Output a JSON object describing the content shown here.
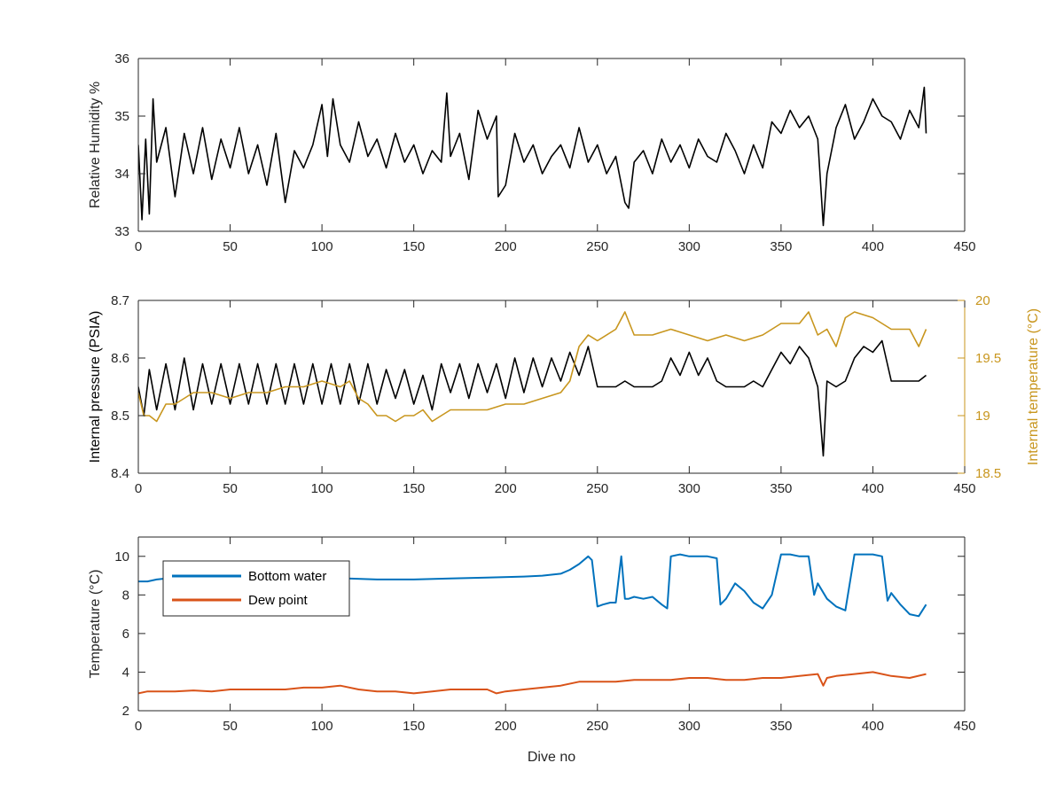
{
  "figure": {
    "background": "#ffffff"
  },
  "chart_data": [
    {
      "type": "line",
      "xlabel": "",
      "ylabel": "Relative Humidity %",
      "xlim": [
        0,
        450
      ],
      "ylim": [
        33,
        36
      ],
      "xticks": [
        0,
        50,
        100,
        150,
        200,
        250,
        300,
        350,
        400,
        450
      ],
      "yticks": [
        33,
        34,
        35,
        36
      ],
      "grid": false,
      "series": [
        {
          "color": "#000000",
          "x": [
            0,
            2,
            4,
            6,
            8,
            10,
            15,
            20,
            25,
            30,
            35,
            40,
            45,
            50,
            55,
            60,
            65,
            70,
            75,
            80,
            85,
            90,
            95,
            100,
            103,
            106,
            110,
            115,
            120,
            125,
            130,
            135,
            140,
            145,
            150,
            155,
            160,
            165,
            168,
            170,
            175,
            180,
            185,
            190,
            195,
            196,
            200,
            205,
            210,
            215,
            220,
            225,
            230,
            235,
            240,
            245,
            250,
            255,
            260,
            265,
            267,
            270,
            275,
            280,
            285,
            290,
            295,
            300,
            305,
            310,
            315,
            320,
            325,
            330,
            335,
            340,
            345,
            350,
            355,
            360,
            365,
            370,
            373,
            375,
            380,
            385,
            390,
            395,
            400,
            405,
            410,
            415,
            420,
            425,
            428,
            429
          ],
          "values": [
            34.5,
            33.2,
            34.6,
            33.3,
            35.3,
            34.2,
            34.8,
            33.6,
            34.7,
            34.0,
            34.8,
            33.9,
            34.6,
            34.1,
            34.8,
            34.0,
            34.5,
            33.8,
            34.7,
            33.5,
            34.4,
            34.1,
            34.5,
            35.2,
            34.3,
            35.3,
            34.5,
            34.2,
            34.9,
            34.3,
            34.6,
            34.1,
            34.7,
            34.2,
            34.5,
            34.0,
            34.4,
            34.2,
            35.4,
            34.3,
            34.7,
            33.9,
            35.1,
            34.6,
            35.0,
            33.6,
            33.8,
            34.7,
            34.2,
            34.5,
            34.0,
            34.3,
            34.5,
            34.1,
            34.8,
            34.2,
            34.5,
            34.0,
            34.3,
            33.5,
            33.4,
            34.2,
            34.4,
            34.0,
            34.6,
            34.2,
            34.5,
            34.1,
            34.6,
            34.3,
            34.2,
            34.7,
            34.4,
            34.0,
            34.5,
            34.1,
            34.9,
            34.7,
            35.1,
            34.8,
            35.0,
            34.6,
            33.1,
            34.0,
            34.8,
            35.2,
            34.6,
            34.9,
            35.3,
            35.0,
            34.9,
            34.6,
            35.1,
            34.8,
            35.5,
            34.7
          ]
        }
      ]
    },
    {
      "type": "line",
      "xlabel": "",
      "ylabel": "Internal pressure (PSIA)",
      "ylabel_right": "Internal temperature (°C)",
      "xlim": [
        0,
        450
      ],
      "ylim": [
        8.4,
        8.7
      ],
      "ylim_right": [
        18.5,
        20
      ],
      "xticks": [
        0,
        50,
        100,
        150,
        200,
        250,
        300,
        350,
        400,
        450
      ],
      "yticks": [
        8.4,
        8.5,
        8.6,
        8.7
      ],
      "yticks_right": [
        18.5,
        19,
        19.5,
        20
      ],
      "grid": false,
      "series": [
        {
          "axis": "left",
          "color": "#000000",
          "x": [
            0,
            3,
            6,
            10,
            15,
            20,
            25,
            30,
            35,
            40,
            45,
            50,
            55,
            60,
            65,
            70,
            75,
            80,
            85,
            90,
            95,
            100,
            105,
            110,
            115,
            120,
            125,
            130,
            135,
            140,
            145,
            150,
            155,
            160,
            165,
            170,
            175,
            180,
            185,
            190,
            195,
            200,
            205,
            210,
            215,
            220,
            225,
            230,
            235,
            240,
            245,
            250,
            255,
            260,
            265,
            270,
            275,
            280,
            285,
            290,
            295,
            300,
            305,
            310,
            315,
            320,
            325,
            330,
            335,
            340,
            345,
            350,
            355,
            360,
            365,
            370,
            373,
            375,
            380,
            385,
            390,
            395,
            400,
            405,
            410,
            415,
            420,
            425,
            429
          ],
          "values": [
            8.55,
            8.5,
            8.58,
            8.51,
            8.59,
            8.51,
            8.6,
            8.51,
            8.59,
            8.52,
            8.59,
            8.52,
            8.59,
            8.52,
            8.59,
            8.52,
            8.59,
            8.52,
            8.59,
            8.52,
            8.59,
            8.52,
            8.59,
            8.52,
            8.59,
            8.52,
            8.59,
            8.52,
            8.58,
            8.53,
            8.58,
            8.52,
            8.57,
            8.51,
            8.59,
            8.54,
            8.59,
            8.53,
            8.59,
            8.54,
            8.59,
            8.53,
            8.6,
            8.54,
            8.6,
            8.55,
            8.6,
            8.56,
            8.61,
            8.57,
            8.62,
            8.55,
            8.55,
            8.55,
            8.56,
            8.55,
            8.55,
            8.55,
            8.56,
            8.6,
            8.57,
            8.61,
            8.57,
            8.6,
            8.56,
            8.55,
            8.55,
            8.55,
            8.56,
            8.55,
            8.58,
            8.61,
            8.59,
            8.62,
            8.6,
            8.55,
            8.43,
            8.56,
            8.55,
            8.56,
            8.6,
            8.62,
            8.61,
            8.63,
            8.56,
            8.56,
            8.56,
            8.56,
            8.57
          ]
        },
        {
          "axis": "right",
          "color": "#c8961e",
          "x": [
            0,
            3,
            6,
            10,
            15,
            20,
            25,
            30,
            40,
            50,
            60,
            70,
            80,
            90,
            100,
            110,
            115,
            120,
            125,
            130,
            135,
            140,
            145,
            150,
            155,
            160,
            165,
            170,
            180,
            190,
            200,
            210,
            220,
            230,
            235,
            240,
            245,
            250,
            260,
            265,
            270,
            280,
            290,
            300,
            310,
            320,
            330,
            340,
            350,
            360,
            365,
            370,
            375,
            380,
            385,
            390,
            400,
            410,
            420,
            425,
            429
          ],
          "values": [
            19.2,
            19.0,
            19.0,
            18.95,
            19.1,
            19.1,
            19.15,
            19.2,
            19.2,
            19.15,
            19.2,
            19.2,
            19.25,
            19.25,
            19.3,
            19.25,
            19.3,
            19.15,
            19.1,
            19.0,
            19.0,
            18.95,
            19.0,
            19.0,
            19.05,
            18.95,
            19.0,
            19.05,
            19.05,
            19.05,
            19.1,
            19.1,
            19.15,
            19.2,
            19.3,
            19.6,
            19.7,
            19.65,
            19.75,
            19.9,
            19.7,
            19.7,
            19.75,
            19.7,
            19.65,
            19.7,
            19.65,
            19.7,
            19.8,
            19.8,
            19.9,
            19.7,
            19.75,
            19.6,
            19.85,
            19.9,
            19.85,
            19.75,
            19.75,
            19.6,
            19.75
          ]
        }
      ]
    },
    {
      "type": "line",
      "xlabel": "Dive no",
      "ylabel": "Temperature (°C)",
      "xlim": [
        0,
        450
      ],
      "ylim": [
        2,
        11
      ],
      "xticks": [
        0,
        50,
        100,
        150,
        200,
        250,
        300,
        350,
        400,
        450
      ],
      "yticks": [
        2,
        4,
        6,
        8,
        10
      ],
      "grid": false,
      "legend": "top-left",
      "series": [
        {
          "name": "Bottom water",
          "color": "#0072bd",
          "x": [
            0,
            5,
            10,
            20,
            30,
            50,
            70,
            100,
            130,
            150,
            170,
            190,
            210,
            220,
            230,
            235,
            240,
            245,
            247,
            250,
            253,
            257,
            260,
            263,
            265,
            267,
            270,
            275,
            280,
            285,
            288,
            290,
            295,
            300,
            305,
            310,
            315,
            317,
            320,
            325,
            330,
            335,
            340,
            345,
            350,
            355,
            360,
            365,
            368,
            370,
            375,
            380,
            385,
            390,
            395,
            400,
            405,
            408,
            410,
            415,
            420,
            425,
            429
          ],
          "values": [
            8.7,
            8.7,
            8.8,
            8.9,
            9.0,
            9.0,
            8.9,
            8.9,
            8.8,
            8.8,
            8.85,
            8.9,
            8.95,
            9.0,
            9.1,
            9.3,
            9.6,
            10.0,
            9.8,
            7.4,
            7.5,
            7.6,
            7.6,
            10.0,
            7.8,
            7.8,
            7.9,
            7.8,
            7.9,
            7.5,
            7.3,
            10.0,
            10.1,
            10.0,
            10.0,
            10.0,
            9.9,
            7.5,
            7.8,
            8.6,
            8.2,
            7.6,
            7.3,
            8.0,
            10.1,
            10.1,
            10.0,
            10.0,
            8.0,
            8.6,
            7.8,
            7.4,
            7.2,
            10.1,
            10.1,
            10.1,
            10.0,
            7.7,
            8.1,
            7.5,
            7.0,
            6.9,
            7.5
          ]
        },
        {
          "name": "Dew point",
          "color": "#d95319",
          "x": [
            0,
            5,
            10,
            20,
            30,
            40,
            50,
            60,
            70,
            80,
            90,
            100,
            110,
            120,
            130,
            140,
            150,
            160,
            170,
            180,
            190,
            195,
            200,
            210,
            220,
            230,
            240,
            250,
            260,
            270,
            280,
            290,
            300,
            310,
            320,
            330,
            340,
            350,
            360,
            370,
            373,
            375,
            380,
            390,
            400,
            410,
            420,
            429
          ],
          "values": [
            2.9,
            3.0,
            3.0,
            3.0,
            3.05,
            3.0,
            3.1,
            3.1,
            3.1,
            3.1,
            3.2,
            3.2,
            3.3,
            3.1,
            3.0,
            3.0,
            2.9,
            3.0,
            3.1,
            3.1,
            3.1,
            2.9,
            3.0,
            3.1,
            3.2,
            3.3,
            3.5,
            3.5,
            3.5,
            3.6,
            3.6,
            3.6,
            3.7,
            3.7,
            3.6,
            3.6,
            3.7,
            3.7,
            3.8,
            3.9,
            3.3,
            3.7,
            3.8,
            3.9,
            4.0,
            3.8,
            3.7,
            3.9
          ]
        }
      ]
    }
  ]
}
